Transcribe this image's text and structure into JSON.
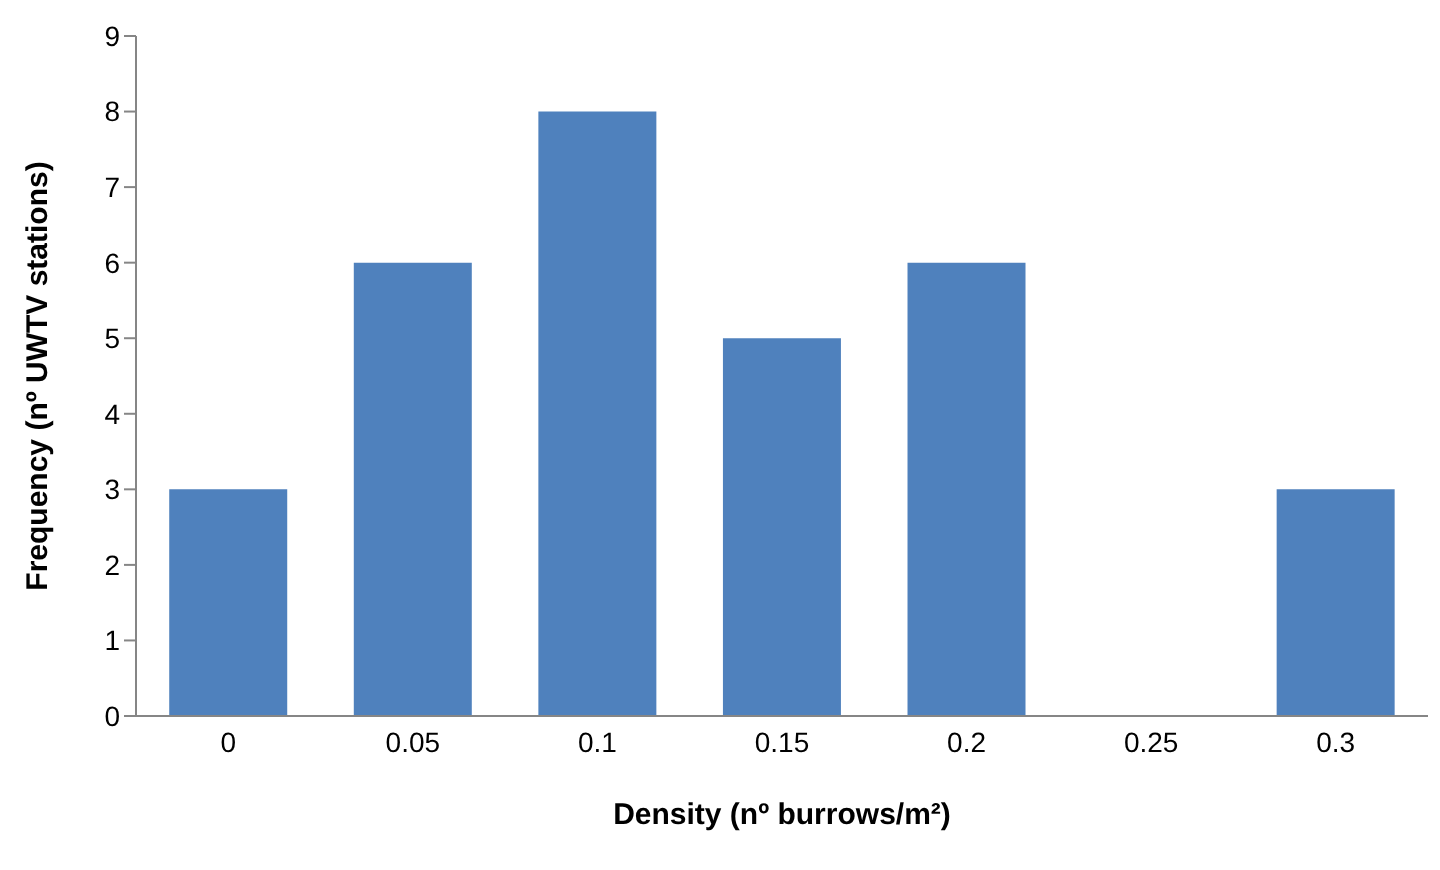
{
  "chart_data": {
    "type": "bar",
    "xlabel": "Density (nº burrows/m²)",
    "ylabel": "Frequency (nº UWTV stations)",
    "categories": [
      "0",
      "0.05",
      "0.1",
      "0.15",
      "0.2",
      "0.25",
      "0.3"
    ],
    "values": [
      3,
      6,
      8,
      5,
      6,
      0,
      3
    ],
    "color": "#4f81bd",
    "ylim": [
      0,
      9
    ],
    "yticks": [
      0,
      1,
      2,
      3,
      4,
      5,
      6,
      7,
      8,
      9
    ],
    "grid": false,
    "legend": false
  }
}
